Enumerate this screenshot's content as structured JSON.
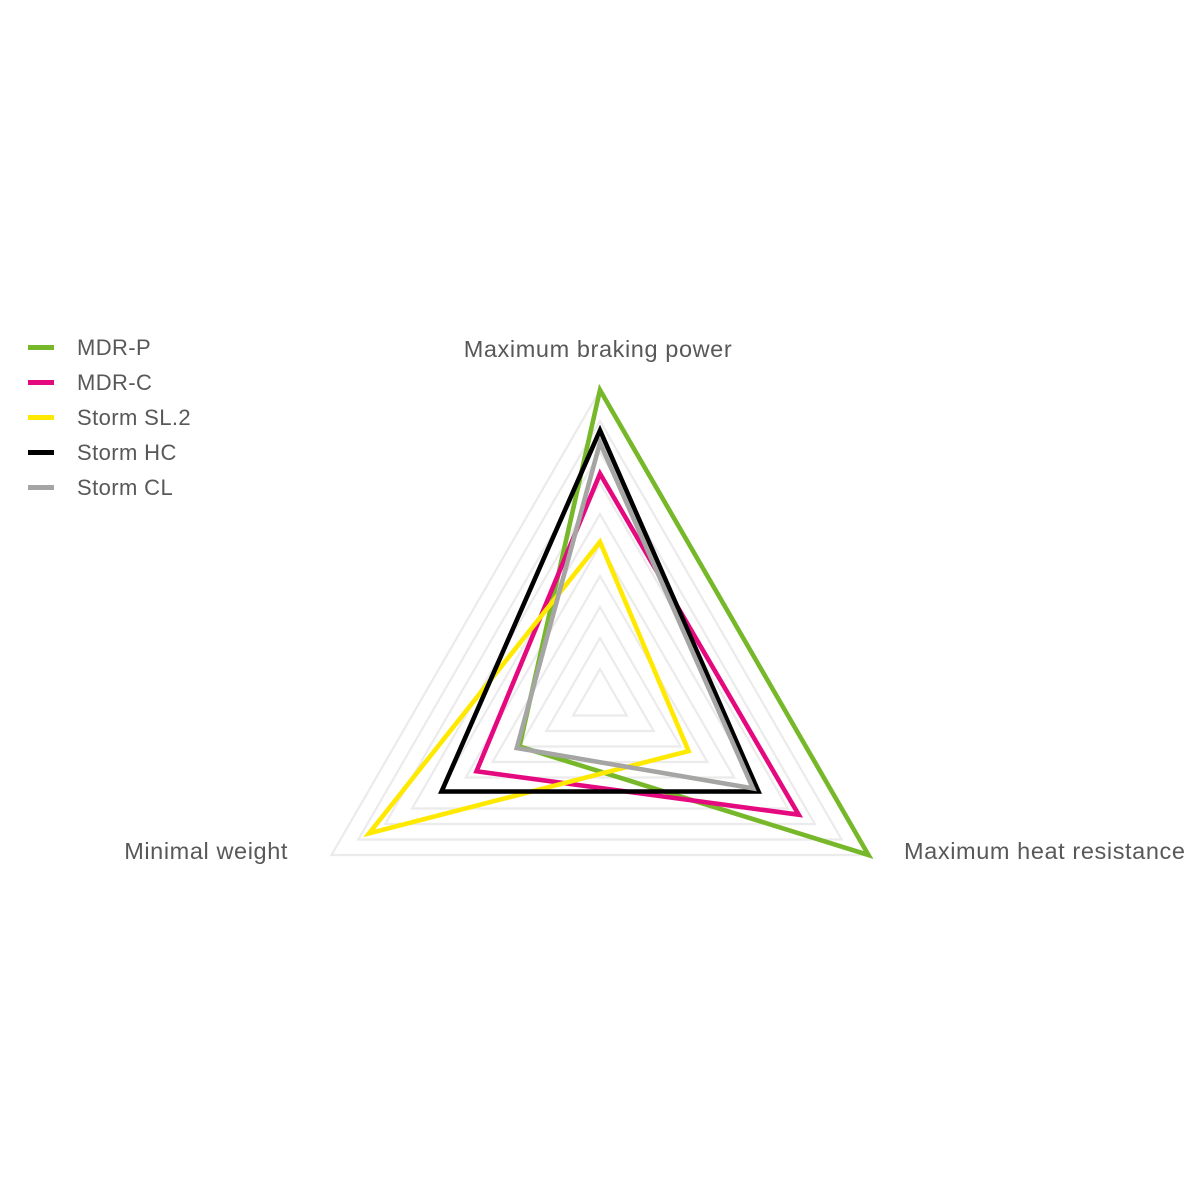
{
  "chart_data": {
    "type": "radar",
    "title": "",
    "background": "#ffffff",
    "grid_color": "#ebebeb",
    "label_color": "#58585a",
    "legend_position": "top-left",
    "grid": "concentric-triangles",
    "axes": [
      {
        "key": "braking",
        "label": "Maximum braking power"
      },
      {
        "key": "heat",
        "label": "Maximum heat resistance"
      },
      {
        "key": "weight",
        "label": "Minimal weight"
      }
    ],
    "scale": {
      "min": 0,
      "max": 10,
      "grid_step": 1,
      "grid_levels": 10
    },
    "series": [
      {
        "name": "MDR-P",
        "color": "#76b82a",
        "values": {
          "braking": 10,
          "heat": 10,
          "weight": 3.0
        }
      },
      {
        "name": "MDR-C",
        "color": "#e5097f",
        "values": {
          "braking": 7.3,
          "heat": 7.4,
          "weight": 4.6
        }
      },
      {
        "name": "Storm SL.2",
        "color": "#ffe900",
        "values": {
          "braking": 5.1,
          "heat": 3.3,
          "weight": 8.6
        }
      },
      {
        "name": "Storm HC",
        "color": "#000000",
        "values": {
          "braking": 8.7,
          "heat": 5.9,
          "weight": 5.9
        }
      },
      {
        "name": "Storm CL",
        "color": "#a5a5a4",
        "values": {
          "braking": 8.3,
          "heat": 5.7,
          "weight": 3.1
        }
      }
    ]
  }
}
